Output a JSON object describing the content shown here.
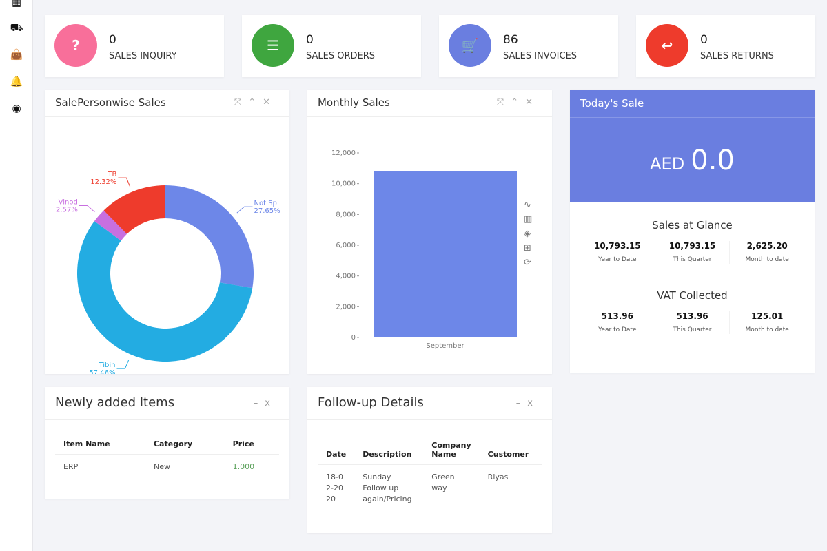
{
  "sidebar": {
    "icons": [
      "dashboard-icon",
      "truck-icon",
      "shopping-bag-icon",
      "bell-icon",
      "user-circle-icon"
    ]
  },
  "stats": [
    {
      "value": "0",
      "label": "SALES INQUIRY",
      "icon": "question-icon",
      "color": "#f86f9a"
    },
    {
      "value": "0",
      "label": "SALES ORDERS",
      "icon": "list-icon",
      "color": "#3fa63f"
    },
    {
      "value": "86",
      "label": "SALES INVOICES",
      "icon": "cart-icon",
      "color": "#6a7ee0"
    },
    {
      "value": "0",
      "label": "SALES RETURNS",
      "icon": "return-icon",
      "color": "#ee3b2c"
    }
  ],
  "salesperson": {
    "title": "SalePersonwise Sales"
  },
  "monthly": {
    "title": "Monthly Sales"
  },
  "today": {
    "title": "Today's Sale",
    "currency": "AED",
    "amount": "0.0",
    "glance_title": "Sales at Glance",
    "glance": [
      {
        "value": "10,793.15",
        "label": "Year to Date"
      },
      {
        "value": "10,793.15",
        "label": "This Quarter"
      },
      {
        "value": "2,625.20",
        "label": "Month to date"
      }
    ],
    "vat_title": "VAT Collected",
    "vat": [
      {
        "value": "513.96",
        "label": "Year to Date"
      },
      {
        "value": "513.96",
        "label": "This Quarter"
      },
      {
        "value": "125.01",
        "label": "Month to date"
      }
    ]
  },
  "items": {
    "title": "Newly added Items",
    "headers": [
      "Item Name",
      "Category",
      "Price"
    ],
    "rows": [
      [
        "ERP",
        "New",
        "1.000"
      ]
    ]
  },
  "followup": {
    "title": "Follow-up Details",
    "headers": [
      "Date",
      "Description",
      "Company Name",
      "Customer"
    ],
    "rows": [
      [
        "18-02-2020",
        "Sunday Follow up again/Pricing",
        "Green way",
        "Riyas"
      ]
    ]
  },
  "chart_data": [
    {
      "type": "pie",
      "donut": true,
      "slices": [
        {
          "name": "Not Sp",
          "label": "27.65%",
          "value": 27.65,
          "color": "#6d87e8"
        },
        {
          "name": "Tibin",
          "label": "57.46%",
          "value": 57.46,
          "color": "#23ace2"
        },
        {
          "name": "Vinod",
          "label": "2.57%",
          "value": 2.57,
          "color": "#c86fe0"
        },
        {
          "name": "TB",
          "label": "12.32%",
          "value": 12.32,
          "color": "#ee3b2c"
        }
      ]
    },
    {
      "type": "bar",
      "categories": [
        "September"
      ],
      "values": [
        10793.15
      ],
      "ylim": [
        0,
        12000
      ],
      "yticks": [
        "0",
        "2,000",
        "4,000",
        "6,000",
        "8,000",
        "10,000",
        "12,000"
      ],
      "color": "#6d87e8"
    }
  ]
}
